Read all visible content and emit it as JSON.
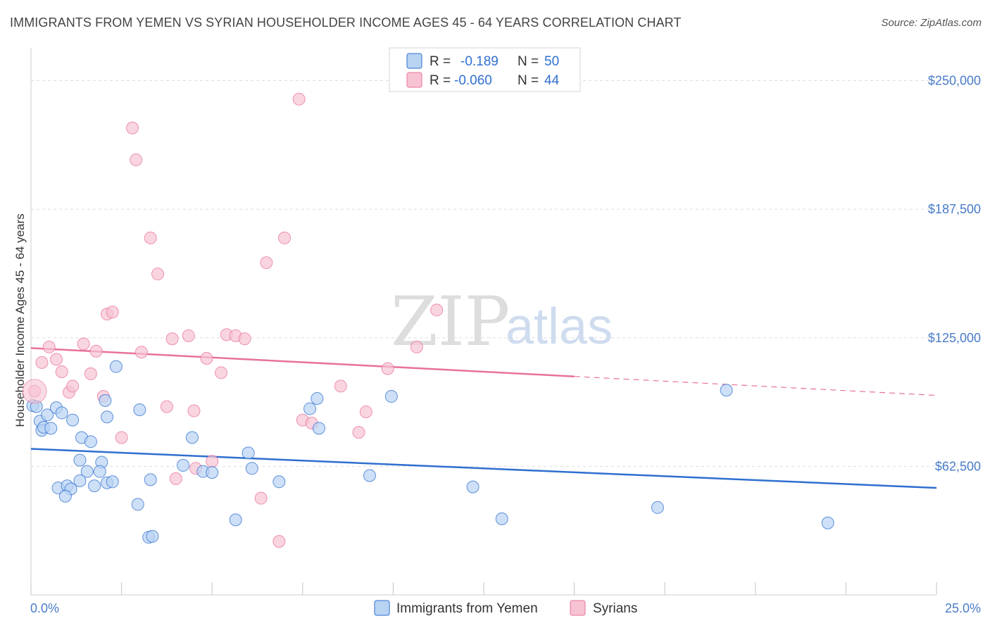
{
  "title": "IMMIGRANTS FROM YEMEN VS SYRIAN HOUSEHOLDER INCOME AGES 45 - 64 YEARS CORRELATION CHART",
  "source": "Source: ZipAtlas.com",
  "watermark": {
    "zip": "ZIP",
    "atlas": "atlas"
  },
  "colors": {
    "blue": "#2f6fcf",
    "blue_fill": "#b9d3f3",
    "pink": "#e8729a",
    "pink_fill": "#f7c3d3"
  },
  "legend": {
    "r_label": "R =",
    "n_label": "N =",
    "rows": [
      {
        "series": "yemen",
        "r": "-0.189",
        "n": "50"
      },
      {
        "series": "syrians",
        "r": "-0.060",
        "n": "44"
      }
    ]
  },
  "chart_data": {
    "type": "scatter",
    "title": "IMMIGRANTS FROM YEMEN VS SYRIAN HOUSEHOLDER INCOME AGES 45 - 64 YEARS CORRELATION CHART",
    "xlabel": "",
    "ylabel": "Householder Income Ages 45 - 64 years",
    "xlim": [
      0,
      25
    ],
    "ylim": [
      0,
      262500
    ],
    "x_tick_labels": {
      "min": "0.0%",
      "max": "25.0%"
    },
    "y_ticks": [
      {
        "value": 62500,
        "label": "$62,500"
      },
      {
        "value": 125000,
        "label": "$125,000"
      },
      {
        "value": 187500,
        "label": "$187,500"
      },
      {
        "value": 250000,
        "label": "$250,000"
      }
    ],
    "grid": true,
    "legend_position": "top-center",
    "series": [
      {
        "name": "Immigrants from Yemen",
        "key": "yemen",
        "points": [
          [
            0.05,
            92000
          ],
          [
            0.15,
            91500
          ],
          [
            0.25,
            84500
          ],
          [
            0.3,
            80000
          ],
          [
            0.35,
            81500
          ],
          [
            0.45,
            87500
          ],
          [
            0.55,
            81000
          ],
          [
            0.7,
            91000
          ],
          [
            0.85,
            88500
          ],
          [
            1.15,
            85000
          ],
          [
            1.4,
            76500
          ],
          [
            1.65,
            74500
          ],
          [
            1.35,
            65500
          ],
          [
            1.95,
            64500
          ],
          [
            1.55,
            60000
          ],
          [
            1.9,
            60000
          ],
          [
            1.35,
            55500
          ],
          [
            2.1,
            54500
          ],
          [
            2.25,
            55000
          ],
          [
            1.75,
            53000
          ],
          [
            0.75,
            52000
          ],
          [
            1.0,
            53000
          ],
          [
            1.1,
            51500
          ],
          [
            0.95,
            48000
          ],
          [
            2.1,
            86500
          ],
          [
            2.05,
            94500
          ],
          [
            2.35,
            111000
          ],
          [
            3.0,
            90000
          ],
          [
            2.95,
            44000
          ],
          [
            3.25,
            28000
          ],
          [
            3.35,
            28500
          ],
          [
            3.3,
            56000
          ],
          [
            4.2,
            63000
          ],
          [
            4.45,
            76500
          ],
          [
            4.75,
            60000
          ],
          [
            5.0,
            59500
          ],
          [
            5.65,
            36500
          ],
          [
            6.0,
            69000
          ],
          [
            6.1,
            61500
          ],
          [
            6.85,
            55000
          ],
          [
            7.7,
            90500
          ],
          [
            7.9,
            95500
          ],
          [
            7.95,
            81000
          ],
          [
            9.35,
            58000
          ],
          [
            9.95,
            96500
          ],
          [
            12.2,
            52500
          ],
          [
            13.0,
            37000
          ],
          [
            17.3,
            42500
          ],
          [
            19.2,
            99500
          ],
          [
            22.0,
            35000
          ]
        ]
      },
      {
        "name": "Syrians",
        "key": "syrians",
        "points": [
          [
            0.1,
            99000
          ],
          [
            0.3,
            113000
          ],
          [
            0.5,
            120500
          ],
          [
            0.7,
            114500
          ],
          [
            0.85,
            108500
          ],
          [
            1.05,
            98500
          ],
          [
            1.15,
            101500
          ],
          [
            1.45,
            122000
          ],
          [
            1.65,
            107500
          ],
          [
            1.8,
            118500
          ],
          [
            2.0,
            96500
          ],
          [
            2.1,
            136500
          ],
          [
            2.25,
            137500
          ],
          [
            2.5,
            76500
          ],
          [
            2.8,
            227000
          ],
          [
            2.9,
            211500
          ],
          [
            3.05,
            118000
          ],
          [
            3.3,
            173500
          ],
          [
            3.5,
            156000
          ],
          [
            3.75,
            91500
          ],
          [
            3.9,
            124500
          ],
          [
            4.0,
            56500
          ],
          [
            4.35,
            126000
          ],
          [
            4.5,
            89500
          ],
          [
            4.55,
            61500
          ],
          [
            4.85,
            115000
          ],
          [
            5.0,
            65000
          ],
          [
            5.25,
            108000
          ],
          [
            5.4,
            126500
          ],
          [
            5.65,
            126000
          ],
          [
            5.9,
            124500
          ],
          [
            6.35,
            47000
          ],
          [
            6.5,
            161500
          ],
          [
            6.85,
            26000
          ],
          [
            7.0,
            173500
          ],
          [
            7.5,
            85000
          ],
          [
            7.75,
            83500
          ],
          [
            7.4,
            241000
          ],
          [
            8.55,
            101500
          ],
          [
            9.05,
            79000
          ],
          [
            9.25,
            89000
          ],
          [
            9.85,
            110000
          ],
          [
            10.65,
            120500
          ],
          [
            11.2,
            138500
          ]
        ]
      }
    ],
    "trend_lines": [
      {
        "series": "yemen",
        "x": [
          0,
          25
        ],
        "y": [
          71000,
          52000
        ],
        "dashed_from": null
      },
      {
        "series": "syrians",
        "x": [
          0,
          25
        ],
        "y": [
          120000,
          97000
        ],
        "dashed_from": 15
      }
    ]
  },
  "bottom_legend": [
    {
      "series": "yemen",
      "label": "Immigrants from Yemen"
    },
    {
      "series": "syrians",
      "label": "Syrians"
    }
  ]
}
